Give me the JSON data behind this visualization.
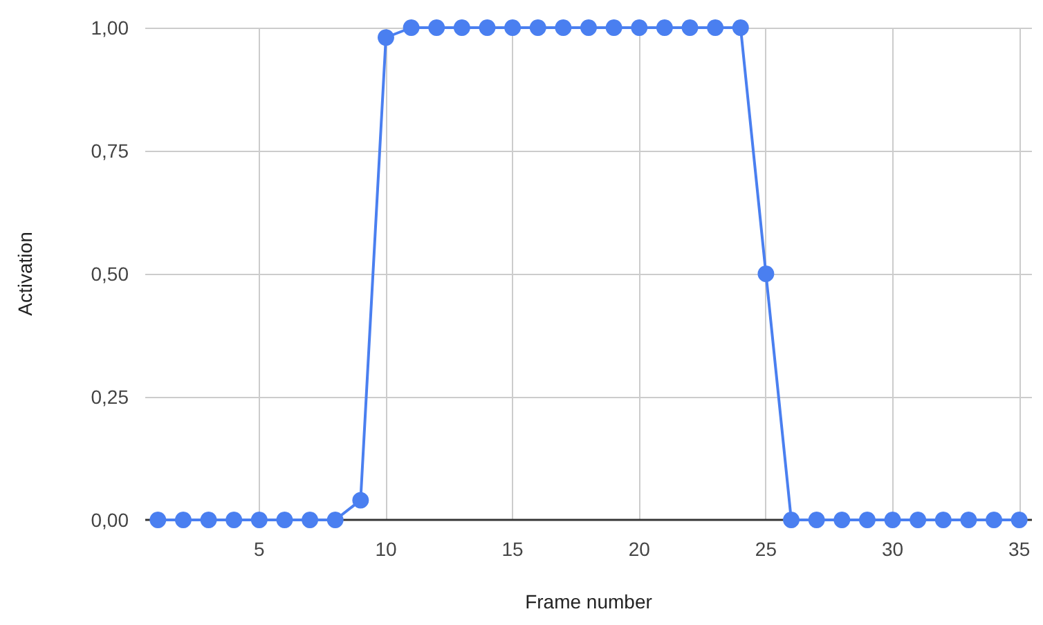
{
  "chart_data": {
    "type": "line",
    "xlabel": "Frame number",
    "ylabel": "Activation",
    "x": [
      1,
      2,
      3,
      4,
      5,
      6,
      7,
      8,
      9,
      10,
      11,
      12,
      13,
      14,
      15,
      16,
      17,
      18,
      19,
      20,
      21,
      22,
      23,
      24,
      25,
      26,
      27,
      28,
      29,
      30,
      31,
      32,
      33,
      34,
      35
    ],
    "series": [
      {
        "color": "#4a7ff0",
        "values": [
          0,
          0,
          0,
          0,
          0,
          0,
          0,
          0,
          0.04,
          0.98,
          1,
          1,
          1,
          1,
          1,
          1,
          1,
          1,
          1,
          1,
          1,
          1,
          1,
          1,
          0.5,
          0,
          0,
          0,
          0,
          0,
          0,
          0,
          0,
          0,
          0
        ]
      }
    ],
    "xlim": [
      0.5,
      35.5
    ],
    "xticks": [
      5,
      10,
      15,
      20,
      25,
      30,
      35
    ],
    "ylim": [
      0,
      1
    ],
    "yticks": [
      {
        "value": 0,
        "label": "0,00"
      },
      {
        "value": 0.25,
        "label": "0,25"
      },
      {
        "value": 0.5,
        "label": "0,50"
      },
      {
        "value": 0.75,
        "label": "0,75"
      },
      {
        "value": 1,
        "label": "1,00"
      }
    ],
    "grid": true,
    "marker": "circle",
    "line_style": "solid"
  }
}
